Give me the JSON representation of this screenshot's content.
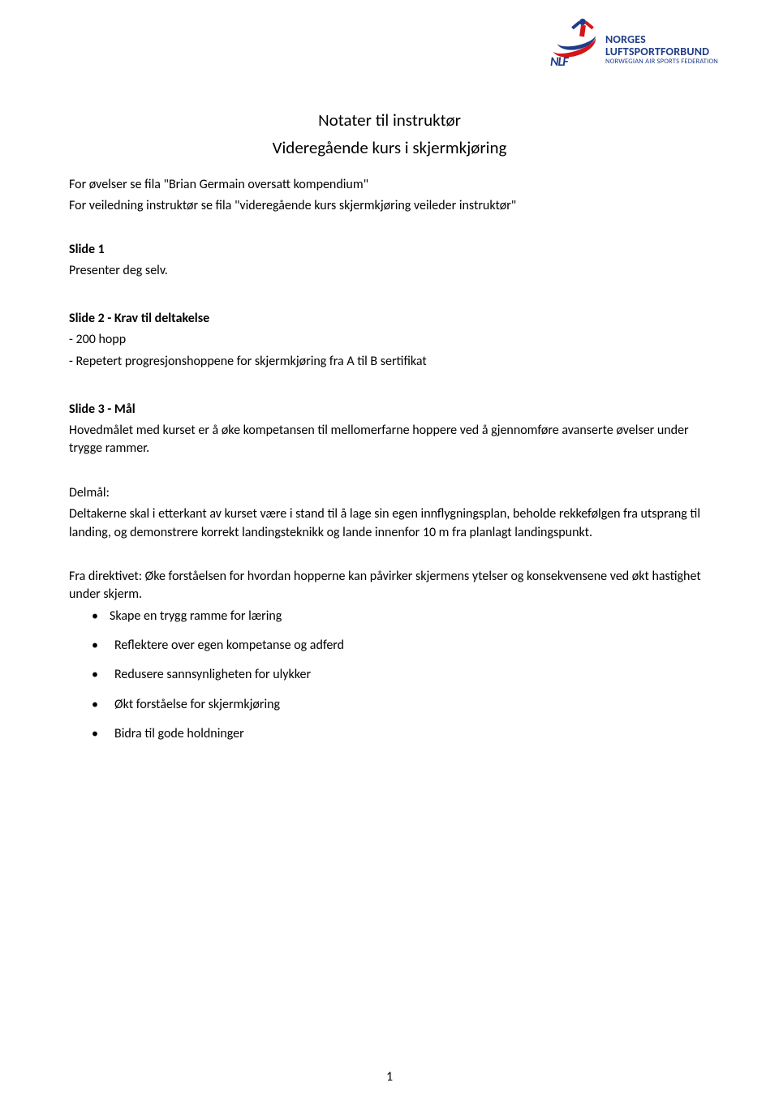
{
  "logo": {
    "abbrev": "NLF",
    "line1": "NORGES",
    "line2": "LUFTSPORTFORBUND",
    "line3": "NORWEGIAN AIR SPORTS FEDERATION"
  },
  "title": {
    "main": "Notater til instruktør",
    "sub": "Videregående kurs i skjermkjøring"
  },
  "intro": {
    "line1": "For øvelser se fila \"Brian Germain oversatt kompendium\"",
    "line2": "For veiledning instruktør se fila \"videregående kurs skjermkjøring veileder instruktør\""
  },
  "slide1": {
    "heading": "Slide 1",
    "text": "Presenter deg selv."
  },
  "slide2": {
    "heading": "Slide 2 - Krav til deltakelse",
    "point1": "- 200 hopp",
    "point2": "- Repetert progresjonshoppene for skjermkjøring fra A til B sertifikat"
  },
  "slide3": {
    "heading": "Slide 3 - Mål",
    "para1": "Hovedmålet med kurset er å øke kompetansen til mellomerfarne hoppere ved å gjennomføre avanserte øvelser under trygge rammer.",
    "delmal_label": "Delmål:",
    "para2": "Deltakerne skal i etterkant av kurset være i stand til å lage sin egen innflygningsplan, beholde rekkefølgen fra utsprang til landing, og demonstrere korrekt landingsteknikk og lande innenfor 10 m fra planlagt landingspunkt.",
    "para3": "Fra direktivet: Øke forståelsen for hvordan hopperne kan påvirker skjermens ytelser og konsekvensene ved økt hastighet under skjerm.",
    "bullets": [
      "Skape en trygg ramme for læring",
      "Reflektere over egen kompetanse og adferd",
      "Redusere sannsynligheten for ulykker",
      "Økt forståelse for skjermkjøring",
      "Bidra til gode holdninger"
    ]
  },
  "page_number": "1",
  "colors": {
    "text": "#000000",
    "logo_blue": "#1f3c88",
    "logo_red": "#d4161b",
    "background": "#ffffff"
  },
  "typography": {
    "body_fontsize": 16,
    "title_fontsize": 21,
    "logo_line_fontsize": 14,
    "logo_sub_fontsize": 8.5,
    "font_family": "Calibri"
  }
}
